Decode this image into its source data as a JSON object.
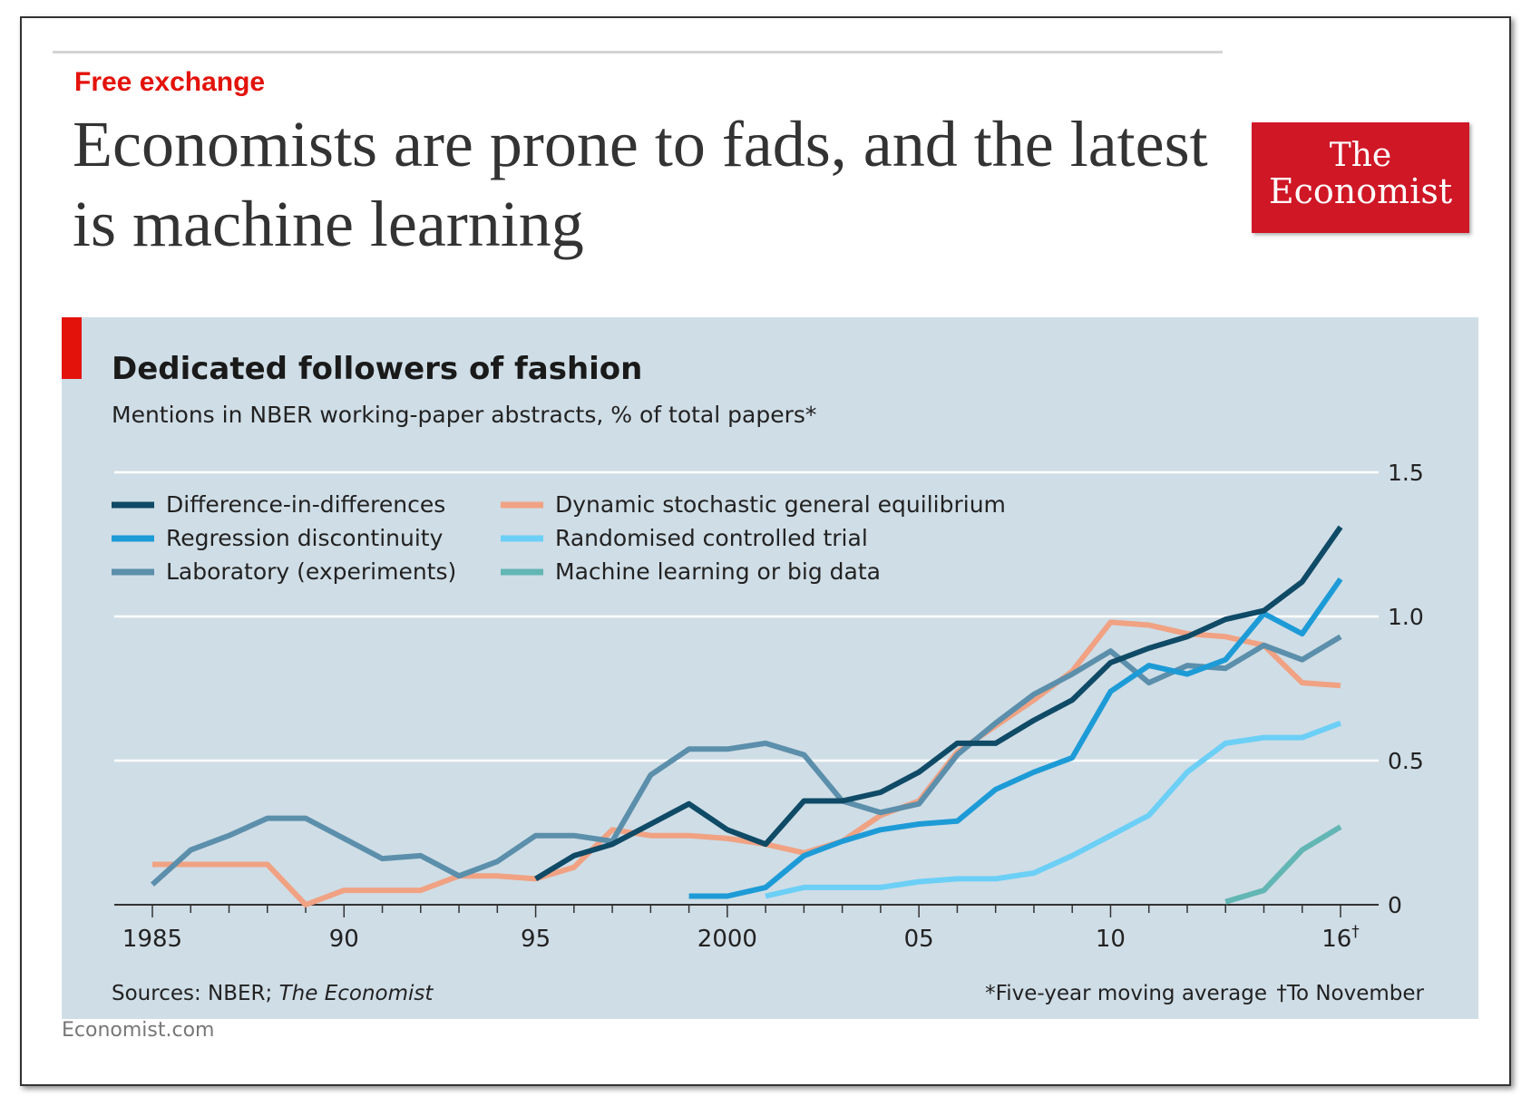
{
  "section_label": "Free exchange",
  "headline": "Economists are prone to fads, and the latest is machine learning",
  "logo": {
    "line1": "The",
    "line2": "Economist"
  },
  "footer_site": "Economist.com",
  "chart_data": {
    "type": "line",
    "title": "Dedicated followers of fashion",
    "subtitle": "Mentions in NBER working-paper abstracts, % of total papers*",
    "xlabel": "",
    "ylabel": "",
    "xlim": [
      1984,
      2017
    ],
    "ylim": [
      0,
      1.5
    ],
    "grid": true,
    "legend_position": "top-left",
    "x_ticks": [
      {
        "x": 1985,
        "label": "1985"
      },
      {
        "x": 1990,
        "label": "90"
      },
      {
        "x": 1995,
        "label": "95"
      },
      {
        "x": 2000,
        "label": "2000"
      },
      {
        "x": 2005,
        "label": "05"
      },
      {
        "x": 2010,
        "label": "10"
      },
      {
        "x": 2016,
        "label": "16†"
      }
    ],
    "y_ticks": [
      {
        "y": 0,
        "label": "0"
      },
      {
        "y": 0.5,
        "label": "0.5"
      },
      {
        "y": 1.0,
        "label": "1.0"
      },
      {
        "y": 1.5,
        "label": "1.5"
      }
    ],
    "series": [
      {
        "name": "Difference-in-differences",
        "color": "#0f4a66",
        "x": [
          1995,
          1996,
          1997,
          1998,
          1999,
          2000,
          2001,
          2002,
          2003,
          2004,
          2005,
          2006,
          2007,
          2008,
          2009,
          2010,
          2011,
          2012,
          2013,
          2014,
          2015,
          2016
        ],
        "y": [
          0.09,
          0.17,
          0.21,
          0.28,
          0.35,
          0.26,
          0.21,
          0.36,
          0.36,
          0.39,
          0.46,
          0.56,
          0.56,
          0.64,
          0.71,
          0.84,
          0.89,
          0.93,
          0.99,
          1.02,
          1.12,
          1.31
        ]
      },
      {
        "name": "Regression discontinuity",
        "color": "#1d9bd7",
        "x": [
          1999,
          2000,
          2001,
          2002,
          2003,
          2004,
          2005,
          2006,
          2007,
          2008,
          2009,
          2010,
          2011,
          2012,
          2013,
          2014,
          2015,
          2016
        ],
        "y": [
          0.03,
          0.03,
          0.06,
          0.17,
          0.22,
          0.26,
          0.28,
          0.29,
          0.4,
          0.46,
          0.51,
          0.74,
          0.83,
          0.8,
          0.85,
          1.01,
          0.94,
          1.13
        ]
      },
      {
        "name": "Laboratory (experiments)",
        "color": "#5b8fab",
        "x": [
          1985,
          1986,
          1987,
          1988,
          1989,
          1990,
          1991,
          1992,
          1993,
          1994,
          1995,
          1996,
          1997,
          1998,
          1999,
          2000,
          2001,
          2002,
          2003,
          2004,
          2005,
          2006,
          2007,
          2008,
          2009,
          2010,
          2011,
          2012,
          2013,
          2014,
          2015,
          2016
        ],
        "y": [
          0.07,
          0.19,
          0.24,
          0.3,
          0.3,
          0.23,
          0.16,
          0.17,
          0.1,
          0.15,
          0.24,
          0.24,
          0.22,
          0.45,
          0.54,
          0.54,
          0.56,
          0.52,
          0.36,
          0.32,
          0.35,
          0.52,
          0.63,
          0.73,
          0.8,
          0.88,
          0.77,
          0.83,
          0.82,
          0.9,
          0.85,
          0.93
        ]
      },
      {
        "name": "Dynamic stochastic general equilibrium",
        "color": "#f0a283",
        "x": [
          1985,
          1986,
          1987,
          1988,
          1989,
          1990,
          1991,
          1992,
          1993,
          1994,
          1995,
          1996,
          1997,
          1998,
          1999,
          2000,
          2001,
          2002,
          2003,
          2004,
          2005,
          2006,
          2007,
          2008,
          2009,
          2010,
          2011,
          2012,
          2013,
          2014,
          2015,
          2016
        ],
        "y": [
          0.14,
          0.14,
          0.14,
          0.14,
          0.0,
          0.05,
          0.05,
          0.05,
          0.1,
          0.1,
          0.09,
          0.13,
          0.26,
          0.24,
          0.24,
          0.23,
          0.21,
          0.18,
          0.22,
          0.31,
          0.36,
          0.53,
          0.62,
          0.71,
          0.81,
          0.98,
          0.97,
          0.94,
          0.93,
          0.9,
          0.77,
          0.76
        ]
      },
      {
        "name": "Randomised controlled trial",
        "color": "#6ccff6",
        "x": [
          2001,
          2002,
          2003,
          2004,
          2005,
          2006,
          2007,
          2008,
          2009,
          2010,
          2011,
          2012,
          2013,
          2014,
          2015,
          2016
        ],
        "y": [
          0.03,
          0.06,
          0.06,
          0.06,
          0.08,
          0.09,
          0.09,
          0.11,
          0.17,
          0.24,
          0.31,
          0.46,
          0.56,
          0.58,
          0.58,
          0.63
        ]
      },
      {
        "name": "Machine learning or big data",
        "color": "#62b6b4",
        "x": [
          2013,
          2014,
          2015,
          2016
        ],
        "y": [
          0.01,
          0.05,
          0.19,
          0.27
        ]
      }
    ],
    "source": "Sources: NBER; ",
    "source_italic": "The Economist",
    "footnote_1": "*Five-year moving average",
    "footnote_2": "†To November"
  }
}
